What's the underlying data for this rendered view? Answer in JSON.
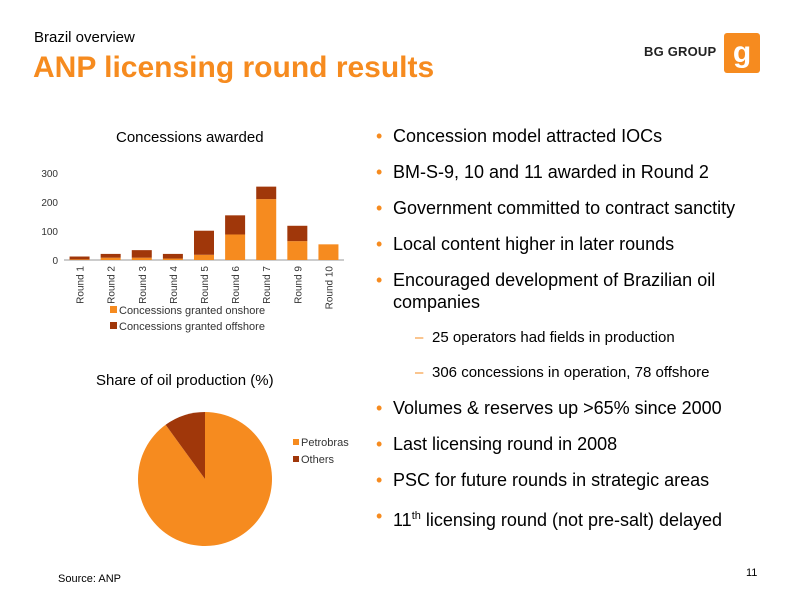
{
  "header": {
    "subtitle": "Brazil overview",
    "title": "ANP licensing round results",
    "brand": "BG GROUP",
    "logo_glyph": "g"
  },
  "colors": {
    "accent": "#f68b1f",
    "onshore": "#f68b1f",
    "offshore": "#a0370a",
    "petrobras": "#f68b1f",
    "others": "#a0370a"
  },
  "chart_data": [
    {
      "type": "bar",
      "stacked": true,
      "title": "Concessions awarded",
      "categories": [
        "Round 1",
        "Round 2",
        "Round 3",
        "Round 4",
        "Round 5",
        "Round 6",
        "Round 7",
        "Round 9",
        "Round 10"
      ],
      "series": [
        {
          "name": "Concessions granted onshore",
          "values": [
            2,
            8,
            8,
            5,
            18,
            88,
            210,
            65,
            54
          ]
        },
        {
          "name": "Concessions granted offshore",
          "values": [
            10,
            13,
            26,
            16,
            83,
            66,
            43,
            53,
            0
          ]
        }
      ],
      "ylim": [
        0,
        300
      ],
      "yticks": [
        0,
        100,
        200,
        300
      ],
      "legend_position": "bottom",
      "grid": false
    },
    {
      "type": "pie",
      "title": "Share of oil production (%)",
      "categories": [
        "Petrobras",
        "Others"
      ],
      "values": [
        90,
        10
      ],
      "legend_position": "right"
    }
  ],
  "bullets": [
    {
      "level": 1,
      "text": "Concession model attracted IOCs"
    },
    {
      "level": 1,
      "text": "BM-S-9, 10 and 11 awarded in Round 2"
    },
    {
      "level": 1,
      "text": "Government committed to contract sanctity"
    },
    {
      "level": 1,
      "text": "Local content higher in later rounds"
    },
    {
      "level": 1,
      "text": "Encouraged development of Brazilian oil companies"
    },
    {
      "level": 2,
      "text": "25 operators had fields in production"
    },
    {
      "level": 2,
      "text": "306 concessions in operation, 78 offshore"
    },
    {
      "level": 1,
      "text": "Volumes & reserves up >65% since 2000"
    },
    {
      "level": 1,
      "text": "Last licensing round in 2008"
    },
    {
      "level": 1,
      "text": "PSC for future rounds in strategic areas"
    },
    {
      "level": 1,
      "text": "licensing round (not pre-salt) delayed",
      "prefix": "11",
      "superscript": "th"
    }
  ],
  "footer": {
    "source": "Source: ANP",
    "page_number": "11"
  }
}
